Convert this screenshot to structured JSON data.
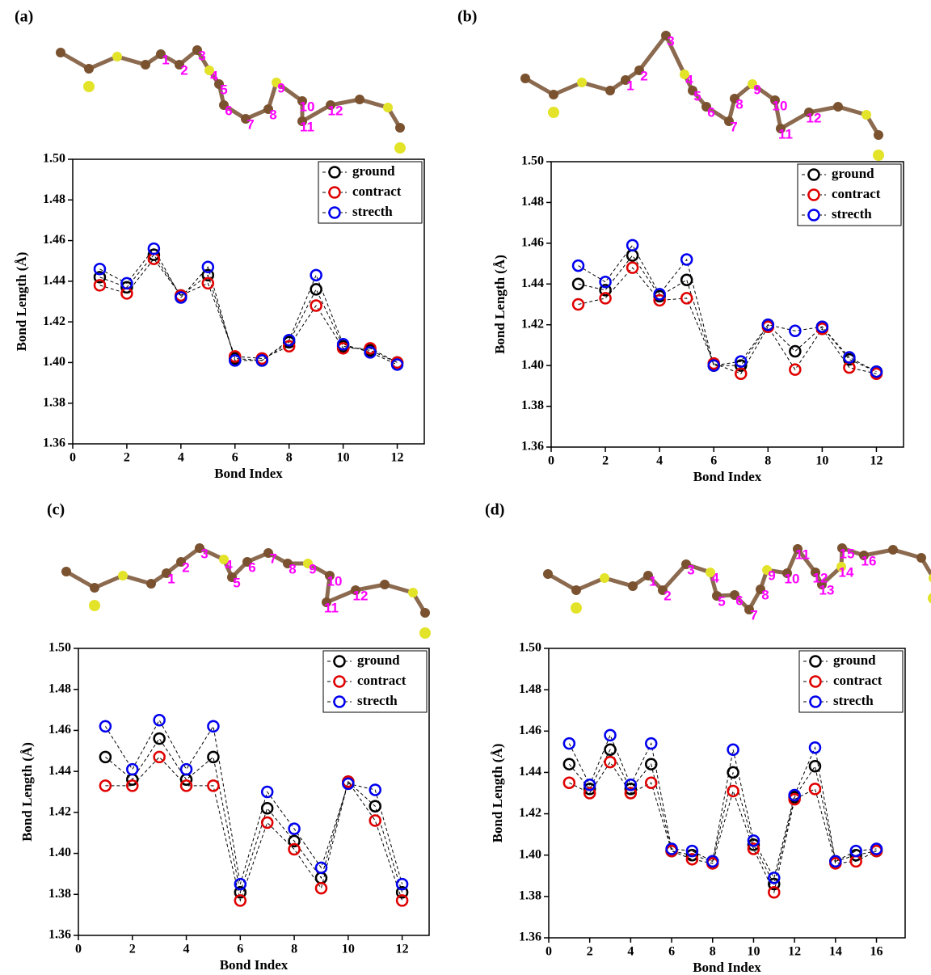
{
  "chart_data": [
    {
      "type": "line",
      "panel_label": "(a)",
      "xlabel": "Bond Index",
      "ylabel": "Bond Length (Å)",
      "molecule_labels": [
        "1",
        "2",
        "3",
        "4",
        "5",
        "6",
        "7",
        "8",
        "9",
        "10",
        "11",
        "12"
      ],
      "x": [
        1,
        2,
        3,
        4,
        5,
        6,
        7,
        8,
        9,
        10,
        11,
        12
      ],
      "series": [
        {
          "name": "ground",
          "color": "#000000",
          "values": [
            1.442,
            1.437,
            1.453,
            1.433,
            1.443,
            1.402,
            1.401,
            1.41,
            1.436,
            1.408,
            1.406,
            1.4
          ]
        },
        {
          "name": "contract",
          "color": "#e00000",
          "values": [
            1.438,
            1.434,
            1.451,
            1.433,
            1.439,
            1.403,
            1.402,
            1.408,
            1.428,
            1.407,
            1.407,
            1.4
          ]
        },
        {
          "name": "strecth",
          "color": "#0000ee",
          "values": [
            1.446,
            1.439,
            1.456,
            1.432,
            1.447,
            1.401,
            1.401,
            1.411,
            1.443,
            1.409,
            1.405,
            1.399
          ]
        }
      ],
      "xlim": [
        0,
        13
      ],
      "ylim": [
        1.36,
        1.5
      ],
      "xticks": [
        0,
        2,
        4,
        6,
        8,
        10,
        12
      ],
      "yticks": [
        1.36,
        1.38,
        {
          "value": 1.4,
          "label": "1.40"
        },
        1.42,
        1.44,
        1.46,
        1.48,
        {
          "value": 1.5,
          "label": "1.50"
        }
      ],
      "legend": "upper right"
    },
    {
      "type": "line",
      "panel_label": "(b)",
      "xlabel": "Bond Index",
      "ylabel": "Bond Length (Å)",
      "molecule_labels": [
        "1",
        "2",
        "3",
        "4",
        "5",
        "6",
        "7",
        "8",
        "9",
        "10",
        "11",
        "12"
      ],
      "x": [
        1,
        2,
        3,
        4,
        5,
        6,
        7,
        8,
        9,
        10,
        11,
        12
      ],
      "series": [
        {
          "name": "ground",
          "color": "#000000",
          "values": [
            1.44,
            1.437,
            1.454,
            1.434,
            1.442,
            1.4,
            1.4,
            1.42,
            1.407,
            1.419,
            1.403,
            1.397
          ]
        },
        {
          "name": "contract",
          "color": "#e00000",
          "values": [
            1.43,
            1.433,
            1.448,
            1.432,
            1.433,
            1.401,
            1.396,
            1.419,
            1.398,
            1.418,
            1.399,
            1.396
          ]
        },
        {
          "name": "strecth",
          "color": "#0000ee",
          "values": [
            1.449,
            1.441,
            1.459,
            1.435,
            1.452,
            1.4,
            1.402,
            1.42,
            1.417,
            1.419,
            1.404,
            1.397
          ]
        }
      ],
      "xlim": [
        0,
        13
      ],
      "ylim": [
        1.36,
        1.5
      ],
      "xticks": [
        0,
        2,
        4,
        6,
        8,
        10,
        12
      ],
      "yticks": [
        1.36,
        1.38,
        {
          "value": 1.4,
          "label": "1.40"
        },
        1.42,
        1.44,
        1.46,
        1.48,
        {
          "value": 1.5,
          "label": "1.50"
        }
      ],
      "legend": "upper right"
    },
    {
      "type": "line",
      "panel_label": "(c)",
      "xlabel": "Bond Index",
      "ylabel": "Bond Length (Å)",
      "molecule_labels": [
        "1",
        "2",
        "3",
        "4",
        "5",
        "6",
        "7",
        "8",
        "9",
        "10",
        "11",
        "12"
      ],
      "x": [
        1,
        2,
        3,
        4,
        5,
        6,
        7,
        8,
        9,
        10,
        11,
        12
      ],
      "series": [
        {
          "name": "ground",
          "color": "#000000",
          "values": [
            1.447,
            1.436,
            1.456,
            1.436,
            1.447,
            1.381,
            1.422,
            1.406,
            1.388,
            1.435,
            1.423,
            1.381
          ]
        },
        {
          "name": "contract",
          "color": "#e00000",
          "values": [
            1.433,
            1.433,
            1.447,
            1.433,
            1.433,
            1.377,
            1.415,
            1.402,
            1.383,
            1.435,
            1.416,
            1.377
          ]
        },
        {
          "name": "strecth",
          "color": "#0000ee",
          "values": [
            1.462,
            1.441,
            1.465,
            1.441,
            1.462,
            1.385,
            1.43,
            1.412,
            1.393,
            1.434,
            1.431,
            1.385
          ]
        }
      ],
      "xlim": [
        0,
        13
      ],
      "ylim": [
        1.36,
        1.5
      ],
      "xticks": [
        0,
        2,
        4,
        6,
        8,
        10,
        12
      ],
      "yticks": [
        1.36,
        1.38,
        {
          "value": 1.4,
          "label": "1.40"
        },
        1.42,
        1.44,
        1.46,
        1.48,
        {
          "value": 1.5,
          "label": "1.50"
        }
      ],
      "legend": "upper right"
    },
    {
      "type": "line",
      "panel_label": "(d)",
      "xlabel": "Bond Index",
      "ylabel": "Bond Length (Å)",
      "molecule_labels": [
        "1",
        "2",
        "3",
        "4",
        "5",
        "6",
        "7",
        "8",
        "9",
        "10",
        "11",
        "12",
        "13",
        "14",
        "15",
        "16"
      ],
      "x": [
        1,
        2,
        3,
        4,
        5,
        6,
        7,
        8,
        9,
        10,
        11,
        12,
        13,
        14,
        15,
        16
      ],
      "series": [
        {
          "name": "ground",
          "color": "#000000",
          "values": [
            1.444,
            1.432,
            1.451,
            1.432,
            1.444,
            1.402,
            1.4,
            1.397,
            1.44,
            1.405,
            1.386,
            1.428,
            1.443,
            1.397,
            1.4,
            1.402
          ]
        },
        {
          "name": "contract",
          "color": "#e00000",
          "values": [
            1.435,
            1.43,
            1.445,
            1.43,
            1.435,
            1.402,
            1.398,
            1.396,
            1.431,
            1.403,
            1.382,
            1.427,
            1.432,
            1.396,
            1.397,
            1.402
          ]
        },
        {
          "name": "strecth",
          "color": "#0000ee",
          "values": [
            1.454,
            1.434,
            1.458,
            1.434,
            1.454,
            1.403,
            1.402,
            1.397,
            1.451,
            1.407,
            1.389,
            1.429,
            1.452,
            1.397,
            1.402,
            1.403
          ]
        }
      ],
      "xlim": [
        0,
        17.4
      ],
      "ylim": [
        1.36,
        1.5
      ],
      "xticks": [
        0,
        2,
        4,
        6,
        8,
        10,
        12,
        14,
        16
      ],
      "yticks": [
        1.36,
        1.38,
        {
          "value": 1.4,
          "label": "1.40"
        },
        1.42,
        1.44,
        1.46,
        1.48,
        {
          "value": 1.5,
          "label": "1.50"
        }
      ],
      "legend": "upper right"
    }
  ]
}
